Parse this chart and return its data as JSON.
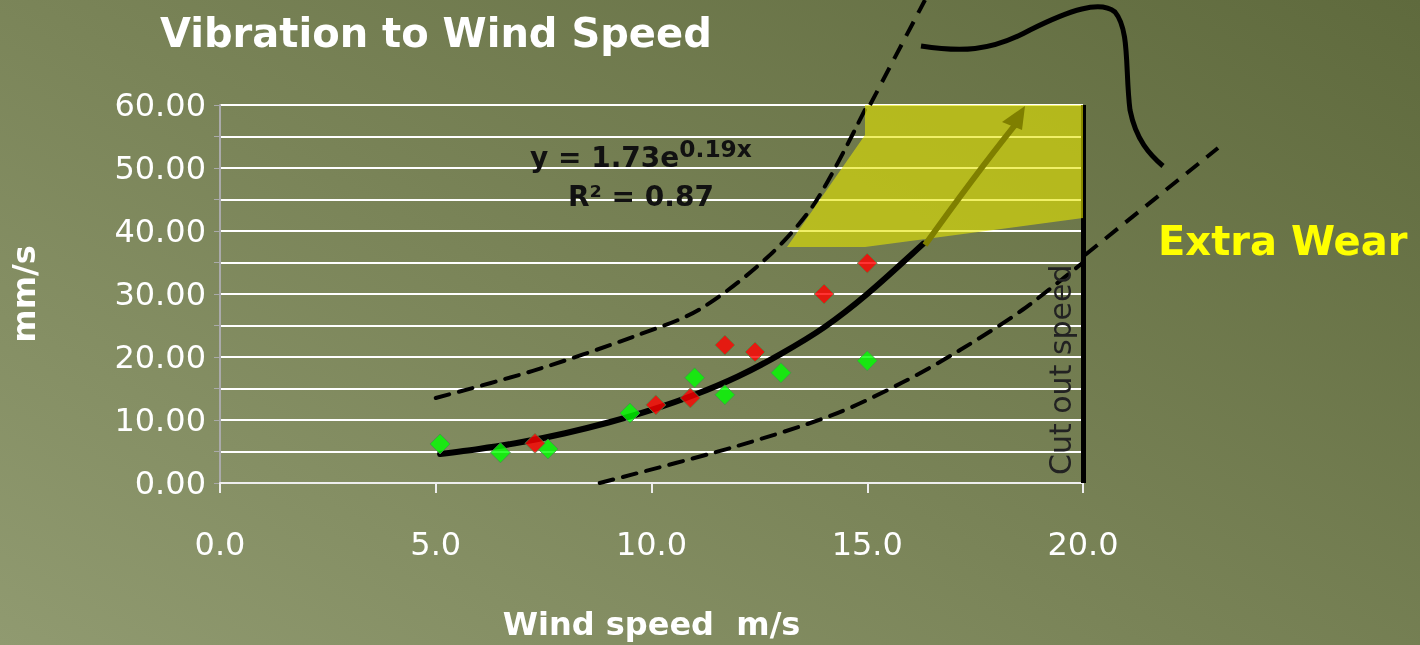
{
  "chart_data": {
    "type": "scatter",
    "title": "Vibration to Wind Speed",
    "xlabel": "Wind speed  m/s",
    "ylabel": "mm/s",
    "annotations": [
      "y = 1.73e$^{0.19x}$",
      "R² = 0.87",
      "Extra Wear"
    ],
    "series": [
      {
        "color": "#00ff00",
        "x": [
          5.1,
          6.5,
          7.6,
          9.5,
          11.0,
          11.7,
          13.0,
          15.0
        ],
        "values": [
          6.2,
          4.8,
          5.4,
          11.1,
          16.7,
          14.0,
          17.5,
          19.4
        ]
      },
      {
        "color": "#ff0000",
        "x": [
          7.3,
          10.1,
          10.9,
          11.7,
          12.4,
          14.0,
          15.0
        ],
        "values": [
          6.3,
          12.4,
          13.5,
          21.9,
          20.8,
          30.0,
          34.9
        ]
      },
      {
        "type": "line",
        "marker": "none",
        "color": "#000000",
        "x": [
          5.1,
          6.0,
          7.0,
          8.0,
          9.0,
          10.0,
          11.0,
          12.0,
          13.0,
          14.0,
          15.0,
          16.3
        ],
        "values": [
          4.6,
          5.4,
          6.5,
          7.9,
          9.6,
          11.6,
          14.0,
          16.9,
          20.5,
          24.7,
          30.0,
          38.0
        ]
      },
      {
        "type": "line",
        "marker": "none",
        "line_style": "dashed",
        "color": "#000000",
        "x": [
          5.0,
          7.25,
          9.57,
          11.1,
          12.7,
          13.8,
          15.0
        ],
        "values": [
          13.5,
          17.8,
          23.2,
          27.5,
          35.9,
          44.6,
          60.0
        ]
      },
      {
        "type": "line",
        "marker": "none",
        "line_style": "dashed",
        "color": "#000000",
        "x": [
          8.8,
          11.9,
          14.2,
          15.8,
          17.15,
          18.6,
          20.0
        ],
        "values": [
          0.0,
          5.7,
          10.8,
          15.9,
          21.1,
          27.5,
          35.0
        ]
      }
    ],
    "marker": "diamond",
    "grid": "y",
    "xlim": [
      0,
      20
    ],
    "xticks": [
      {
        "value": 0,
        "label": "0.0"
      },
      {
        "value": 5,
        "label": "5.0"
      },
      {
        "value": 10,
        "label": "10.0"
      },
      {
        "value": 15,
        "label": "15.0"
      },
      {
        "value": 20,
        "label": "20.0"
      }
    ],
    "ylim": [
      0,
      60
    ],
    "yticks": [
      {
        "value": 0,
        "label": "0.00"
      },
      {
        "value": 5,
        "label": null
      },
      {
        "value": 10,
        "label": "10.00"
      },
      {
        "value": 15,
        "label": null
      },
      {
        "value": 20,
        "label": "20.00"
      },
      {
        "value": 25,
        "label": null
      },
      {
        "value": 30,
        "label": "30.00"
      },
      {
        "value": 35,
        "label": null
      },
      {
        "value": 40,
        "label": "40.00"
      },
      {
        "value": 45,
        "label": null
      },
      {
        "value": 50,
        "label": "50.00"
      },
      {
        "value": 55,
        "label": null
      },
      {
        "value": 60,
        "label": "60.00"
      }
    ],
    "ref_lines": [
      {
        "axis": "x",
        "value": 20,
        "label": "Cut out speed",
        "color": "#000000"
      }
    ]
  }
}
